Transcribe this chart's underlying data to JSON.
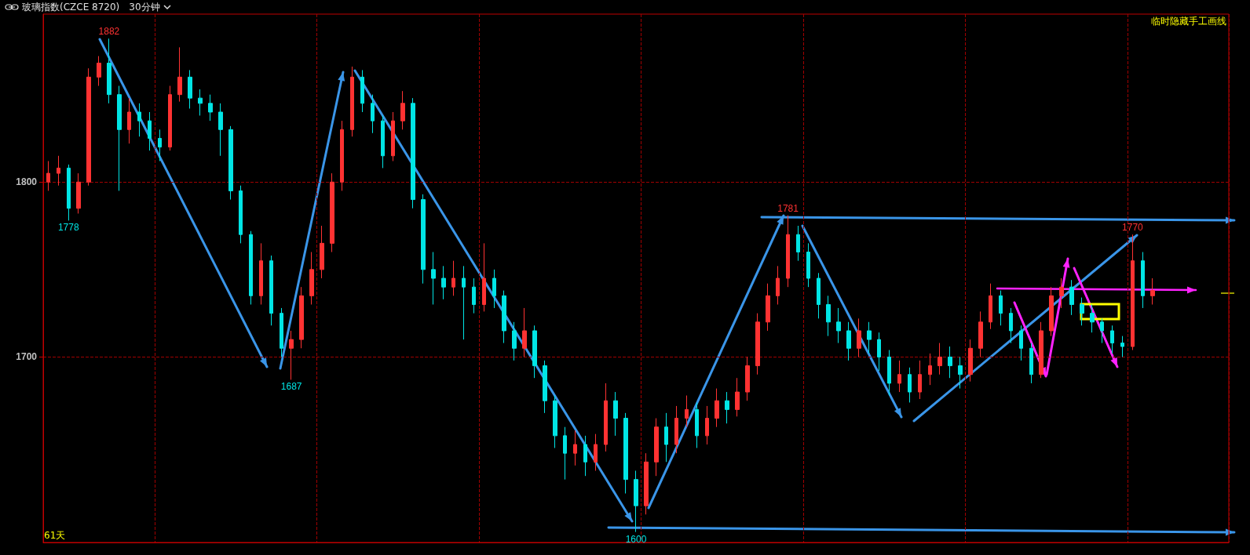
{
  "chart_data": {
    "type": "candlestick",
    "title": "玻璃指数(CZCE 8720)",
    "subtitle": "30分钟",
    "annotations": [
      {
        "text": "1882",
        "y": 1882
      },
      {
        "text": "1778",
        "y": 1778
      },
      {
        "text": "1687",
        "y": 1687
      },
      {
        "text": "1600",
        "y": 1600
      },
      {
        "text": "1781",
        "y": 1781
      },
      {
        "text": "1770",
        "y": 1770
      },
      "61天",
      "临时隐藏手工画线"
    ],
    "categories": [
      null,
      null,
      null,
      null,
      null,
      null,
      null,
      null,
      null,
      null,
      null,
      null,
      null,
      null,
      null,
      null,
      null,
      null,
      null,
      null,
      null,
      null,
      null,
      null,
      null,
      null,
      null,
      null,
      null,
      null,
      null,
      null,
      null,
      null,
      null,
      null,
      null,
      null,
      null,
      null,
      null,
      null,
      null,
      null,
      null,
      null,
      null,
      null,
      null,
      null,
      null,
      null,
      null,
      null,
      null,
      null,
      null,
      null,
      null,
      null,
      null,
      null,
      null,
      null,
      null,
      null,
      null,
      null,
      null,
      null,
      null,
      null,
      null,
      null,
      null,
      null,
      null,
      null,
      null,
      null,
      null,
      null,
      null,
      null,
      null,
      null,
      null,
      null,
      null,
      null,
      null,
      null,
      null,
      null,
      null,
      null,
      null,
      null,
      null,
      null,
      null,
      null,
      null,
      null,
      null,
      null,
      null,
      null,
      null,
      null,
      null,
      null,
      null,
      null,
      null,
      null,
      null
    ],
    "ohlc": [
      [
        1800,
        1812,
        1795,
        1805
      ],
      [
        1805,
        1815,
        1798,
        1808
      ],
      [
        1808,
        1810,
        1778,
        1785
      ],
      [
        1785,
        1805,
        1782,
        1800
      ],
      [
        1800,
        1865,
        1798,
        1860
      ],
      [
        1860,
        1872,
        1855,
        1868
      ],
      [
        1868,
        1882,
        1845,
        1850
      ],
      [
        1850,
        1855,
        1795,
        1830
      ],
      [
        1830,
        1848,
        1822,
        1840
      ],
      [
        1840,
        1845,
        1826,
        1835
      ],
      [
        1835,
        1840,
        1818,
        1825
      ],
      [
        1825,
        1830,
        1812,
        1820
      ],
      [
        1820,
        1855,
        1818,
        1850
      ],
      [
        1850,
        1877,
        1846,
        1860
      ],
      [
        1860,
        1864,
        1842,
        1848
      ],
      [
        1848,
        1853,
        1838,
        1845
      ],
      [
        1845,
        1850,
        1835,
        1840
      ],
      [
        1840,
        1845,
        1815,
        1830
      ],
      [
        1830,
        1832,
        1790,
        1795
      ],
      [
        1795,
        1798,
        1765,
        1770
      ],
      [
        1770,
        1772,
        1730,
        1735
      ],
      [
        1735,
        1765,
        1730,
        1755
      ],
      [
        1755,
        1758,
        1718,
        1725
      ],
      [
        1725,
        1728,
        1700,
        1705
      ],
      [
        1705,
        1715,
        1687,
        1710
      ],
      [
        1710,
        1740,
        1705,
        1735
      ],
      [
        1735,
        1760,
        1730,
        1750
      ],
      [
        1750,
        1775,
        1745,
        1765
      ],
      [
        1765,
        1805,
        1760,
        1800
      ],
      [
        1800,
        1835,
        1795,
        1830
      ],
      [
        1830,
        1866,
        1826,
        1860
      ],
      [
        1860,
        1864,
        1840,
        1845
      ],
      [
        1845,
        1850,
        1828,
        1835
      ],
      [
        1835,
        1838,
        1808,
        1815
      ],
      [
        1815,
        1840,
        1812,
        1835
      ],
      [
        1835,
        1852,
        1830,
        1845
      ],
      [
        1845,
        1848,
        1785,
        1790
      ],
      [
        1790,
        1793,
        1742,
        1750
      ],
      [
        1750,
        1760,
        1730,
        1745
      ],
      [
        1745,
        1752,
        1733,
        1740
      ],
      [
        1740,
        1755,
        1735,
        1745
      ],
      [
        1745,
        1752,
        1710,
        1740
      ],
      [
        1740,
        1745,
        1725,
        1730
      ],
      [
        1730,
        1765,
        1726,
        1745
      ],
      [
        1745,
        1750,
        1728,
        1735
      ],
      [
        1735,
        1738,
        1708,
        1715
      ],
      [
        1715,
        1720,
        1698,
        1705
      ],
      [
        1705,
        1728,
        1700,
        1715
      ],
      [
        1715,
        1718,
        1688,
        1695
      ],
      [
        1695,
        1698,
        1668,
        1675
      ],
      [
        1675,
        1678,
        1648,
        1655
      ],
      [
        1655,
        1660,
        1630,
        1645
      ],
      [
        1645,
        1658,
        1638,
        1650
      ],
      [
        1650,
        1655,
        1632,
        1640
      ],
      [
        1640,
        1656,
        1635,
        1650
      ],
      [
        1650,
        1685,
        1646,
        1675
      ],
      [
        1675,
        1680,
        1655,
        1665
      ],
      [
        1665,
        1668,
        1622,
        1630
      ],
      [
        1630,
        1635,
        1600,
        1615
      ],
      [
        1615,
        1645,
        1610,
        1640
      ],
      [
        1640,
        1665,
        1632,
        1660
      ],
      [
        1660,
        1668,
        1640,
        1650
      ],
      [
        1650,
        1672,
        1645,
        1665
      ],
      [
        1665,
        1678,
        1660,
        1670
      ],
      [
        1670,
        1674,
        1648,
        1655
      ],
      [
        1655,
        1672,
        1650,
        1665
      ],
      [
        1665,
        1682,
        1660,
        1675
      ],
      [
        1675,
        1680,
        1662,
        1670
      ],
      [
        1670,
        1688,
        1666,
        1680
      ],
      [
        1680,
        1700,
        1675,
        1695
      ],
      [
        1695,
        1725,
        1690,
        1720
      ],
      [
        1720,
        1742,
        1715,
        1735
      ],
      [
        1735,
        1752,
        1730,
        1745
      ],
      [
        1745,
        1781,
        1740,
        1770
      ],
      [
        1770,
        1775,
        1755,
        1760
      ],
      [
        1760,
        1765,
        1740,
        1745
      ],
      [
        1745,
        1748,
        1722,
        1730
      ],
      [
        1730,
        1735,
        1712,
        1720
      ],
      [
        1720,
        1728,
        1708,
        1715
      ],
      [
        1715,
        1720,
        1698,
        1705
      ],
      [
        1705,
        1722,
        1700,
        1715
      ],
      [
        1715,
        1720,
        1702,
        1710
      ],
      [
        1710,
        1714,
        1692,
        1700
      ],
      [
        1700,
        1704,
        1678,
        1685
      ],
      [
        1685,
        1698,
        1680,
        1690
      ],
      [
        1690,
        1694,
        1674,
        1680
      ],
      [
        1680,
        1698,
        1676,
        1690
      ],
      [
        1690,
        1702,
        1684,
        1695
      ],
      [
        1695,
        1708,
        1690,
        1700
      ],
      [
        1700,
        1706,
        1688,
        1695
      ],
      [
        1695,
        1700,
        1682,
        1690
      ],
      [
        1690,
        1710,
        1686,
        1705
      ],
      [
        1705,
        1726,
        1700,
        1720
      ],
      [
        1720,
        1742,
        1716,
        1735
      ],
      [
        1735,
        1738,
        1718,
        1725
      ],
      [
        1725,
        1728,
        1708,
        1715
      ],
      [
        1715,
        1718,
        1698,
        1705
      ],
      [
        1705,
        1708,
        1685,
        1690
      ],
      [
        1690,
        1720,
        1688,
        1715
      ],
      [
        1715,
        1740,
        1712,
        1735
      ],
      [
        1735,
        1745,
        1728,
        1740
      ],
      [
        1740,
        1744,
        1724,
        1730
      ],
      [
        1730,
        1734,
        1718,
        1725
      ],
      [
        1725,
        1730,
        1714,
        1720
      ],
      [
        1720,
        1722,
        1708,
        1715
      ],
      [
        1715,
        1718,
        1702,
        1708
      ],
      [
        1708,
        1712,
        1700,
        1706
      ],
      [
        1706,
        1770,
        1704,
        1755
      ],
      [
        1755,
        1760,
        1728,
        1735
      ],
      [
        1735,
        1745,
        1730,
        1738
      ],
      null,
      null,
      null,
      null,
      null,
      null,
      null
    ],
    "colors": [
      "#ff3232",
      "#ff3232",
      "#00e5e5",
      "#ff3232",
      "#ff3232",
      "#ff3232",
      "#00e5e5",
      "#00e5e5",
      "#ff3232",
      "#00e5e5",
      "#00e5e5",
      "#00e5e5",
      "#ff3232",
      "#ff3232",
      "#00e5e5",
      "#00e5e5",
      "#00e5e5",
      "#00e5e5",
      "#00e5e5",
      "#00e5e5",
      "#00e5e5",
      "#ff3232",
      "#00e5e5",
      "#00e5e5",
      "#ff3232",
      "#ff3232",
      "#ff3232",
      "#ff3232",
      "#ff3232",
      "#ff3232",
      "#ff3232",
      "#00e5e5",
      "#00e5e5",
      "#00e5e5",
      "#ff3232",
      "#ff3232",
      "#00e5e5",
      "#00e5e5",
      "#00e5e5",
      "#00e5e5",
      "#ff3232",
      "#00e5e5",
      "#00e5e5",
      "#ff3232",
      "#00e5e5",
      "#00e5e5",
      "#00e5e5",
      "#ff3232",
      "#00e5e5",
      "#00e5e5",
      "#00e5e5",
      "#00e5e5",
      "#ff3232",
      "#00e5e5",
      "#ff3232",
      "#ff3232",
      "#00e5e5",
      "#00e5e5",
      "#00e5e5",
      "#ff3232",
      "#ff3232",
      "#00e5e5",
      "#ff3232",
      "#ff3232",
      "#00e5e5",
      "#ff3232",
      "#ff3232",
      "#00e5e5",
      "#ff3232",
      "#ff3232",
      "#ff3232",
      "#ff3232",
      "#ff3232",
      "#ff3232",
      "#00e5e5",
      "#00e5e5",
      "#00e5e5",
      "#00e5e5",
      "#00e5e5",
      "#00e5e5",
      "#ff3232",
      "#00e5e5",
      "#00e5e5",
      "#00e5e5",
      "#ff3232",
      "#00e5e5",
      "#ff3232",
      "#ff3232",
      "#ff3232",
      "#00e5e5",
      "#00e5e5",
      "#ff3232",
      "#ff3232",
      "#ff3232",
      "#00e5e5",
      "#00e5e5",
      "#00e5e5",
      "#00e5e5",
      "#ff3232",
      "#ff3232",
      "#ff3232",
      "#00e5e5",
      "#00e5e5",
      "#00e5e5",
      "#00e5e5",
      "#00e5e5",
      "#00e5e5",
      "#ff3232",
      "#00e5e5",
      "#ff3232",
      null,
      null,
      null,
      null,
      null,
      null,
      null
    ],
    "ylim": [
      1594,
      1896
    ],
    "yticks": [
      1700,
      1800
    ],
    "grid": true
  }
}
